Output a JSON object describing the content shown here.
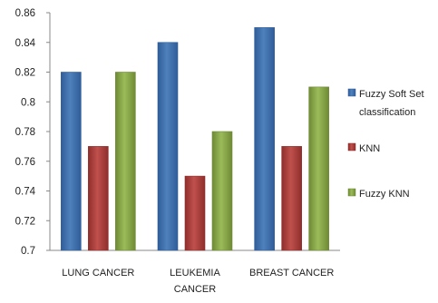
{
  "chart_data": {
    "type": "bar",
    "categories": [
      [
        "LUNG CANCER"
      ],
      [
        "LEUKEMIA",
        "CANCER"
      ],
      [
        "BREAST CANCER"
      ]
    ],
    "series": [
      {
        "name": [
          "Fuzzy Soft Set",
          "classification"
        ],
        "values": [
          0.82,
          0.84,
          0.85
        ],
        "color": "#4F81BD",
        "color_dark": "#2F5D99"
      },
      {
        "name": [
          "KNN"
        ],
        "values": [
          0.77,
          0.75,
          0.77
        ],
        "color": "#C0504D",
        "color_dark": "#8E2E2B"
      },
      {
        "name": [
          "Fuzzy KNN"
        ],
        "values": [
          0.82,
          0.78,
          0.81
        ],
        "color": "#9BBB59",
        "color_dark": "#6E8A35"
      }
    ],
    "ylim": [
      0.7,
      0.86
    ],
    "yticks": [
      "0.7",
      "0.72",
      "0.74",
      "0.76",
      "0.78",
      "0.8",
      "0.82",
      "0.84",
      "0.86"
    ],
    "grid": false,
    "legend_position": "right",
    "title": "",
    "xlabel": "",
    "ylabel": ""
  }
}
